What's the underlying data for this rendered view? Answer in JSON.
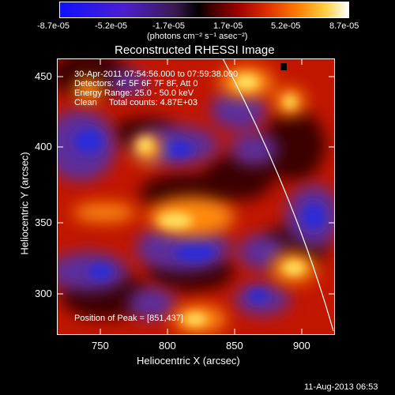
{
  "colorbar": {
    "ticks": [
      "-8.7e-05",
      "-5.2e-05",
      "-1.7e-05",
      "1.7e-05",
      "5.2e-05",
      "8.7e-05"
    ],
    "unit_label": "(photons cm⁻² s⁻¹ asec⁻²)"
  },
  "plot": {
    "title": "Reconstructed RHESSI Image",
    "xlabel": "Heliocentric X (arcsec)",
    "ylabel": "Heliocentric Y (arcsec)",
    "x_ticks": [
      "750",
      "800",
      "850",
      "900"
    ],
    "y_ticks": [
      "450",
      "400",
      "350",
      "300"
    ],
    "xlim": [
      723,
      913
    ],
    "ylim": [
      270,
      475
    ]
  },
  "info": {
    "time_range": "30-Apr-2011 07:54:56.000 to 07:59:38.000",
    "detectors": "Detectors: 4F 5F 6F 7F 8F, Att 0",
    "energy_range": "Energy Range: 25.0 - 50.0 keV",
    "clean_line": "Clean     Total counts: 4.87E+03",
    "peak_position": "Position of Peak = [851,437]"
  },
  "footer": {
    "timestamp": "11-Aug-2013 06:53"
  },
  "colors": {
    "background": "#000000",
    "text": "#ffffff"
  }
}
